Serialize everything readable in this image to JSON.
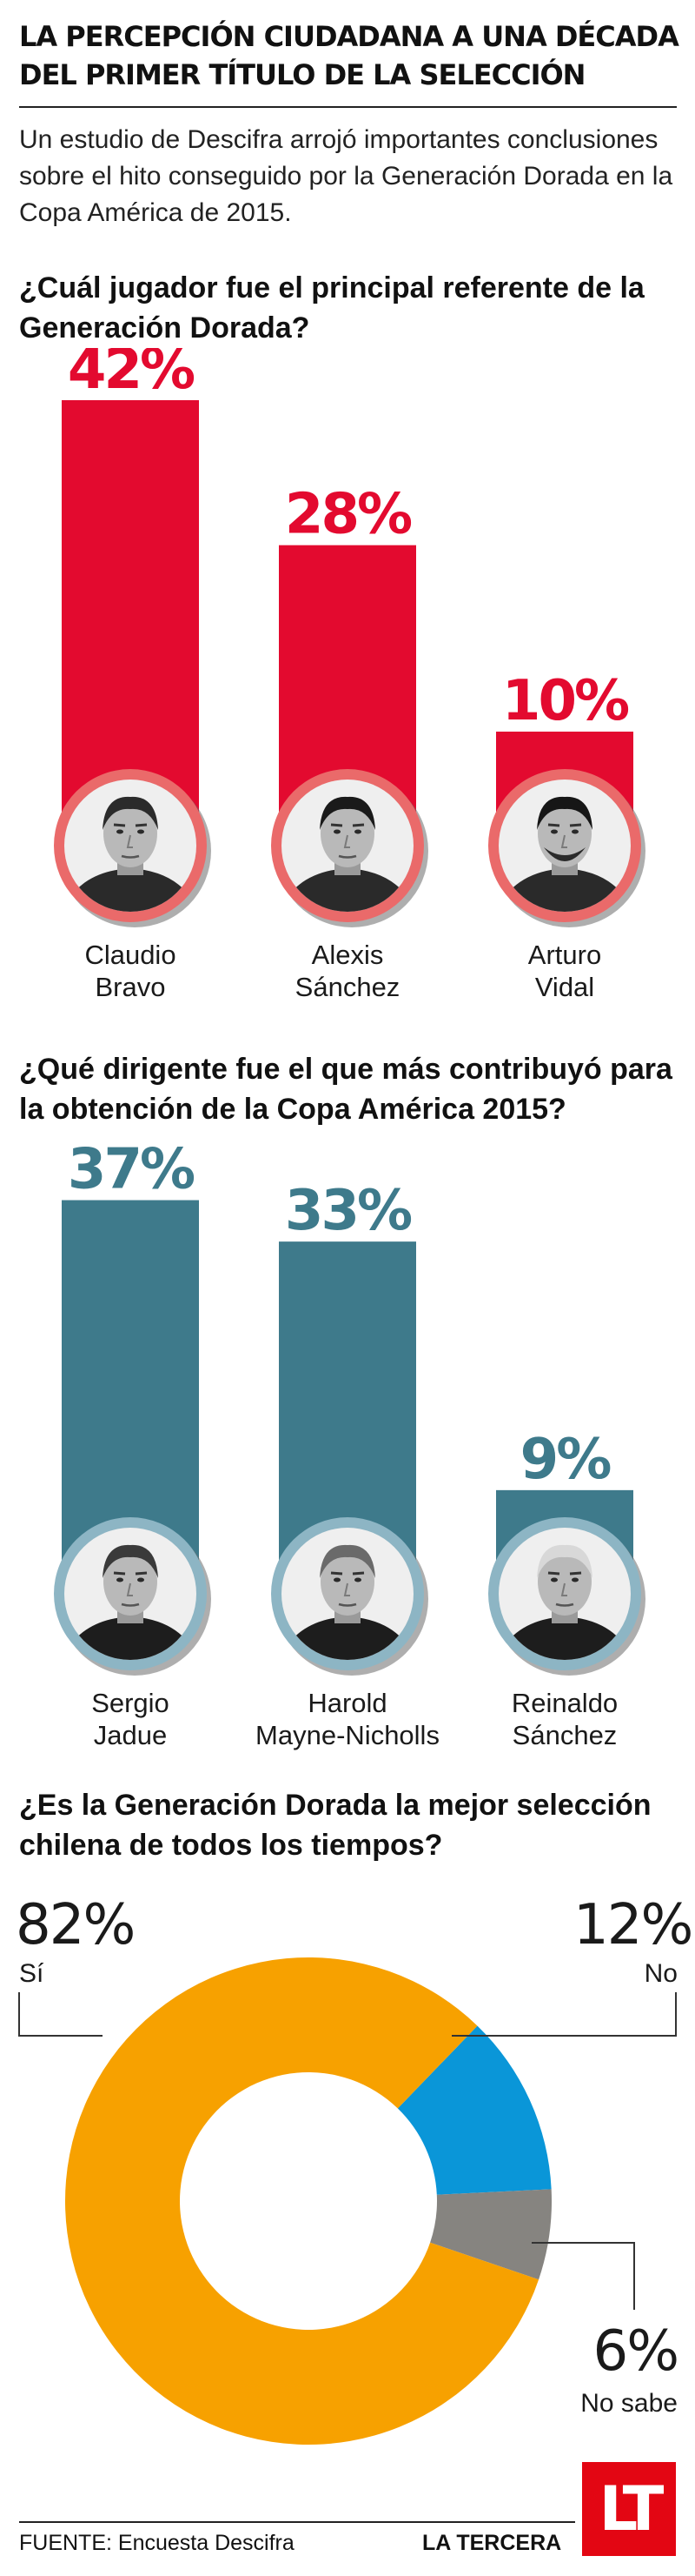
{
  "header": {
    "title": "LA PERCEPCIÓN CIUDADANA A UNA DÉCADA DEL PRIMER TÍTULO DE LA SELECCIÓN",
    "intro": "Un estudio de Descifra arrojó importantes conclusiones sobre el hito conseguido por la Generación Dorada en la Copa América de 2015."
  },
  "colors": {
    "players": "#e30a2f",
    "players_ring": "#ea6a6a",
    "leaders": "#3e7a8b",
    "leaders_ring": "#8db5c4",
    "si": "#f7a100",
    "no": "#0a96d8",
    "nosabe": "#868480"
  },
  "chart_data": [
    {
      "type": "bar",
      "title": "¿Cuál jugador fue el principal referente de la Generación Dorada?",
      "categories": [
        "Claudio Bravo",
        "Alexis Sánchez",
        "Arturo Vidal"
      ],
      "values": [
        42,
        28,
        10
      ],
      "value_labels": [
        "42%",
        "28%",
        "10%"
      ],
      "label_lines": [
        [
          "Claudio",
          "Bravo"
        ],
        [
          "Alexis",
          "Sánchez"
        ],
        [
          "Arturo",
          "Vidal"
        ]
      ],
      "unit": "%"
    },
    {
      "type": "bar",
      "title": "¿Qué dirigente fue el que más contribuyó para la obtención de la Copa América 2015?",
      "categories": [
        "Sergio Jadue",
        "Harold Mayne-Nicholls",
        "Reinaldo Sánchez"
      ],
      "values": [
        37,
        33,
        9
      ],
      "value_labels": [
        "37%",
        "33%",
        "9%"
      ],
      "label_lines": [
        [
          "Sergio",
          "Jadue"
        ],
        [
          "Harold",
          "Mayne-Nicholls"
        ],
        [
          "Reinaldo",
          "Sánchez"
        ]
      ],
      "unit": "%"
    },
    {
      "type": "pie",
      "title": "¿Es la Generación Dorada la mejor selección chilena de todos los tiempos?",
      "categories": [
        "Sí",
        "No",
        "No sabe"
      ],
      "values": [
        82,
        12,
        6
      ],
      "value_labels": [
        "82%",
        "12%",
        "6%"
      ],
      "colors": [
        "#f7a100",
        "#0a96d8",
        "#868480"
      ],
      "donut": true
    }
  ],
  "footer": {
    "source": "FUENTE: Encuesta Descifra",
    "brand": "LA TERCERA",
    "logo": "LT"
  }
}
